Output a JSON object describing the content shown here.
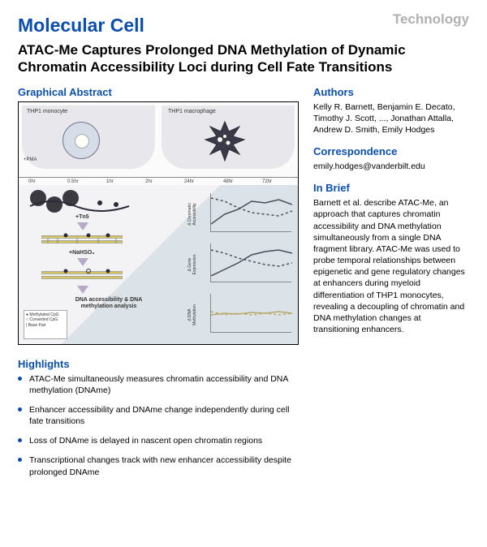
{
  "category": "Technology",
  "journal": "Molecular Cell",
  "title": "ATAC-Me Captures Prolonged DNA Methylation of Dynamic Chromatin Accessibility Loci during Cell Fate Transitions",
  "graphicalAbstract": {
    "heading": "Graphical Abstract",
    "left_cell_label": "THP1 monocyte",
    "right_cell_label": "THP1 macrophage",
    "pma_label": "+PMA",
    "ticks": [
      "0hr",
      "0.5hr",
      "1hr",
      "2hr",
      "24hr",
      "48hr",
      "72hr"
    ],
    "step1": "+Tn5",
    "step2": "+NaHSO₃",
    "analysis_label": "DNA accessibility &\nDNA methylation analysis",
    "legend": {
      "l1": "Methylated CpG",
      "l2": "Converted CpG",
      "l3": "Base Pair"
    },
    "miniChartLabels": [
      "Δ Chromatin Accessibility",
      "Δ Gene Expression",
      "Δ DNA Methylation"
    ],
    "miniCharts": [
      {
        "solid": [
          10,
          22,
          28,
          38,
          36,
          40,
          34
        ],
        "dash": [
          42,
          38,
          30,
          24,
          22,
          20,
          26
        ],
        "color": "#4a4a58"
      },
      {
        "solid": [
          8,
          16,
          24,
          34,
          38,
          40,
          36
        ],
        "dash": [
          40,
          36,
          30,
          26,
          22,
          20,
          24
        ],
        "color": "#4a4a58"
      },
      {
        "solid": [
          22,
          24,
          23,
          25,
          24,
          26,
          24
        ],
        "dash": [
          26,
          22,
          24,
          22,
          24,
          22,
          24
        ],
        "color": "#b6a96b"
      }
    ],
    "colors": {
      "cell_bg": "#e8e8ec",
      "monocyte_fill": "#d6dce8",
      "monocyte_border": "#7a7a90",
      "macrophage_fill": "#3a3a48",
      "lower_tint": "#dbe3e8",
      "nucleosome": "#3a3a40",
      "arrow": "#b9a9c9",
      "dna_bar": "#e6d77a"
    }
  },
  "authors": {
    "heading": "Authors",
    "text": "Kelly R. Barnett, Benjamin E. Decato, Timothy J. Scott, ..., Jonathan Attalla, Andrew D. Smith, Emily Hodges"
  },
  "correspondence": {
    "heading": "Correspondence",
    "text": "emily.hodges@vanderbilt.edu"
  },
  "inBrief": {
    "heading": "In Brief",
    "text": "Barnett et al. describe ATAC-Me, an approach that captures chromatin accessibility and DNA methylation simultaneously from a single DNA fragment library. ATAC-Me was used to probe temporal relationships between epigenetic and gene regulatory changes at enhancers during myeloid differentiation of THP1 monocytes, revealing a decoupling of chromatin and DNA methylation changes at transitioning enhancers."
  },
  "highlights": {
    "heading": "Highlights",
    "items": [
      "ATAC-Me simultaneously measures chromatin accessibility and DNA methylation (DNAme)",
      "Enhancer accessibility and DNAme change independently during cell fate transitions",
      "Loss of DNAme is delayed in nascent open chromatin regions",
      "Transcriptional changes track with new enhancer accessibility despite prolonged DNAme"
    ]
  }
}
